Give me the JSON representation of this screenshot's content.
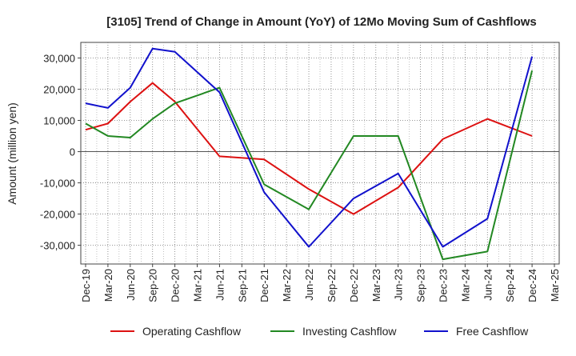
{
  "chart_data": {
    "type": "line",
    "title": "[3105]  Trend of Change in Amount (YoY) of 12Mo Moving Sum of Cashflows",
    "xlabel": "",
    "ylabel": "Amount (million yen)",
    "ylim": [
      -36000,
      35000
    ],
    "y_ticks": [
      30000,
      20000,
      10000,
      0,
      -10000,
      -20000,
      -30000
    ],
    "y_tick_labels": [
      "30,000",
      "20,000",
      "10,000",
      "0",
      "-10,000",
      "-20,000",
      "-30,000"
    ],
    "x_tick_labels": [
      "Dec-19",
      "Mar-20",
      "Jun-20",
      "Sep-20",
      "Dec-20",
      "Mar-21",
      "Jun-21",
      "Sep-21",
      "Dec-21",
      "Mar-22",
      "Jun-22",
      "Sep-22",
      "Dec-22",
      "Mar-23",
      "Jun-23",
      "Sep-23",
      "Dec-23",
      "Mar-24",
      "Jun-24",
      "Sep-24",
      "Dec-24",
      "Mar-25"
    ],
    "grid": true,
    "legend_position": "bottom",
    "series": [
      {
        "name": "Operating Cashflow",
        "color": "#dd1111",
        "points": [
          [
            0,
            7000
          ],
          [
            1,
            9000
          ],
          [
            2,
            16000
          ],
          [
            3,
            22000
          ],
          [
            4,
            16000
          ],
          [
            6,
            -1500
          ],
          [
            8,
            -2500
          ],
          [
            10,
            -12000
          ],
          [
            12,
            -20000
          ],
          [
            14,
            -11500
          ],
          [
            16,
            4000
          ],
          [
            18,
            10500
          ],
          [
            20,
            5000
          ]
        ]
      },
      {
        "name": "Investing Cashflow",
        "color": "#228822",
        "points": [
          [
            0,
            9000
          ],
          [
            1,
            5000
          ],
          [
            2,
            4500
          ],
          [
            3,
            10500
          ],
          [
            4,
            15500
          ],
          [
            6,
            20500
          ],
          [
            8,
            -10500
          ],
          [
            10,
            -18500
          ],
          [
            12,
            5000
          ],
          [
            14,
            5000
          ],
          [
            16,
            -34500
          ],
          [
            18,
            -32000
          ],
          [
            20,
            26000
          ]
        ]
      },
      {
        "name": "Free Cashflow",
        "color": "#1111cc",
        "points": [
          [
            0,
            15500
          ],
          [
            1,
            14000
          ],
          [
            2,
            20500
          ],
          [
            3,
            33000
          ],
          [
            4,
            32000
          ],
          [
            6,
            19000
          ],
          [
            8,
            -13000
          ],
          [
            10,
            -30500
          ],
          [
            12,
            -15000
          ],
          [
            14,
            -7000
          ],
          [
            16,
            -30500
          ],
          [
            18,
            -21500
          ],
          [
            20,
            30500
          ]
        ]
      }
    ]
  }
}
